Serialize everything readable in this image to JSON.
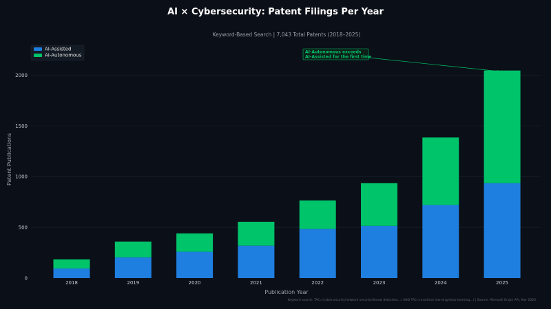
{
  "colors": {
    "background": "#0b0f17",
    "assisted": "#1f7fe0",
    "autonomous": "#00c46a",
    "grid": "#1a212c"
  },
  "chart_data": {
    "type": "bar",
    "stacked": true,
    "title": "AI × Cybersecurity: Patent Filings Per Year",
    "subtitle": "Keyword-Based Search  |  7,043 Total Patents (2018–2025)",
    "xlabel": "Publication Year",
    "ylabel": "Patent Publications",
    "categories": [
      "2018",
      "2019",
      "2020",
      "2021",
      "2022",
      "2023",
      "2024",
      "2025"
    ],
    "series": [
      {
        "name": "AI-Assisted",
        "color": "#1f7fe0",
        "values": [
          95,
          205,
          260,
          320,
          485,
          515,
          720,
          935
        ]
      },
      {
        "name": "AI-Autonomous",
        "color": "#00c46a",
        "values": [
          90,
          155,
          180,
          235,
          280,
          420,
          665,
          1110
        ]
      }
    ],
    "ylim": [
      0,
      2300
    ],
    "yticks": [
      0,
      500,
      1000,
      1500,
      2000
    ],
    "grid": true,
    "legend_position": "top-left",
    "annotation": {
      "lines": [
        "AI-Autonomous exceeds",
        "AI-Assisted for the first time"
      ],
      "target_category": "2025"
    },
    "footer": "Keyword search: TAC=(cybersecurity/network security/threat detection...) AND TAC=(machine learning/deep learning...)  |  Source: Minesoft Origin API, Mar 2026"
  }
}
